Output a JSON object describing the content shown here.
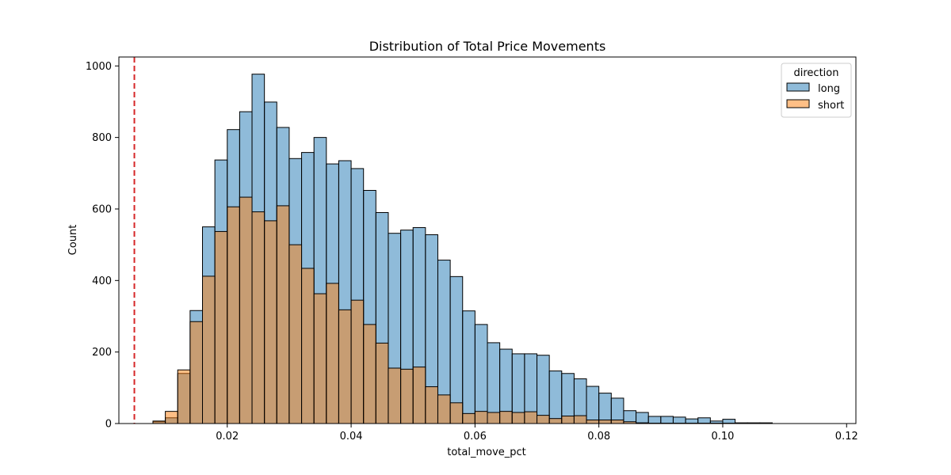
{
  "chart_data": {
    "type": "bar",
    "subtype": "overlaid-histogram",
    "title": "Distribution of Total Price Movements",
    "xlabel": "total_move_pct",
    "ylabel": "Count",
    "xlim": [
      0.0025,
      0.1215
    ],
    "ylim": [
      0,
      1025
    ],
    "x_ticks": [
      0.02,
      0.04,
      0.06,
      0.08,
      0.1,
      0.12
    ],
    "x_tick_labels": [
      "0.02",
      "0.04",
      "0.06",
      "0.08",
      "0.10",
      "0.12"
    ],
    "y_ticks": [
      0,
      200,
      400,
      600,
      800,
      1000
    ],
    "y_tick_labels": [
      "0",
      "200",
      "400",
      "600",
      "800",
      "1000"
    ],
    "bin_start": 0.008,
    "bin_width": 0.002,
    "legend": {
      "title": "direction",
      "position": "top-right"
    },
    "reference_line": {
      "x": 0.005,
      "color": "#d62728",
      "style": "dashed"
    },
    "series": [
      {
        "name": "long",
        "color": "#1f77b4",
        "values": [
          5,
          16,
          140,
          316,
          550,
          737,
          822,
          872,
          977,
          899,
          828,
          741,
          758,
          800,
          726,
          735,
          713,
          652,
          590,
          532,
          541,
          548,
          528,
          457,
          411,
          315,
          277,
          226,
          208,
          195,
          195,
          191,
          147,
          140,
          125,
          104,
          85,
          71,
          36,
          31,
          20,
          20,
          18,
          13,
          16,
          7,
          12,
          2,
          2,
          2
        ]
      },
      {
        "name": "short",
        "color": "#ff7f0e",
        "values": [
          7,
          34,
          150,
          285,
          412,
          537,
          606,
          633,
          592,
          567,
          609,
          500,
          434,
          363,
          392,
          318,
          345,
          277,
          225,
          155,
          152,
          158,
          103,
          80,
          58,
          28,
          34,
          31,
          34,
          31,
          33,
          23,
          14,
          21,
          22,
          10,
          10,
          10,
          5,
          2,
          1,
          1,
          1,
          1,
          1,
          1,
          1,
          1,
          1,
          1
        ]
      }
    ]
  }
}
